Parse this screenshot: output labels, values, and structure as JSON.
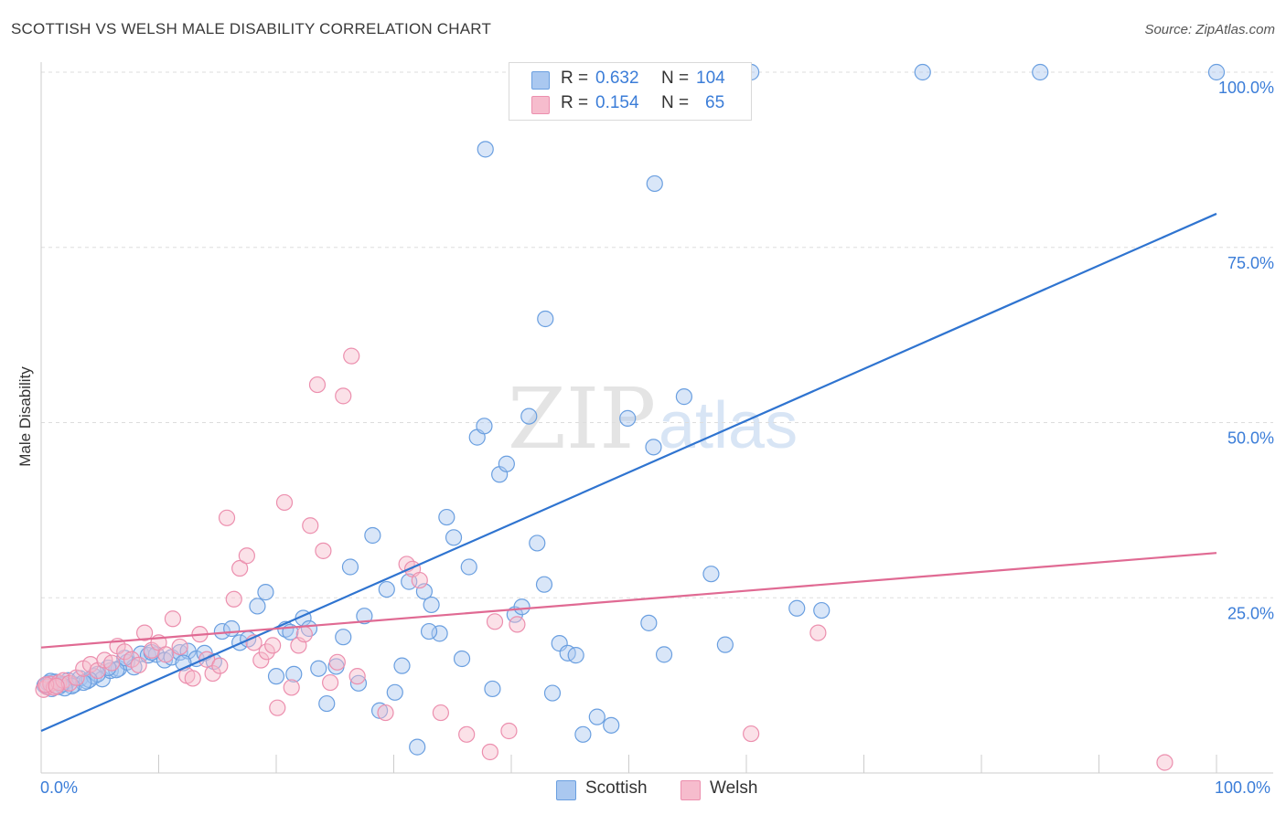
{
  "title": "SCOTTISH VS WELSH MALE DISABILITY CORRELATION CHART",
  "source": "Source: ZipAtlas.com",
  "watermark": "ZIPatlas",
  "legend_stats": [
    {
      "r_label": "R =",
      "r_value": "0.632",
      "n_label": "N =",
      "n_value": "104",
      "color": "#aac8f0"
    },
    {
      "r_label": "R =",
      "r_value": "0.154",
      "n_label": "N =",
      "n_value": "65",
      "color": "#f6bccd"
    }
  ],
  "chart_data": {
    "type": "scatter",
    "title": "SCOTTISH VS WELSH MALE DISABILITY CORRELATION CHART",
    "xlabel": "",
    "ylabel": "Male Disability",
    "xlim": [
      0,
      100
    ],
    "ylim": [
      0,
      100
    ],
    "x_tick_labels": [
      "0.0%",
      "100.0%"
    ],
    "y_tick_labels": [
      "25.0%",
      "50.0%",
      "75.0%",
      "100.0%"
    ],
    "y_ticks": [
      25,
      50,
      75,
      100
    ],
    "grid": true,
    "legend_position": "bottom-center",
    "series": [
      {
        "name": "Scottish",
        "color": "#6a9fe0",
        "fill": "#aac8f0",
        "trend": {
          "x": [
            0,
            100
          ],
          "y": [
            6.0,
            79.8
          ],
          "color": "#2f74d0"
        },
        "points": [
          [
            0.3,
            12.5
          ],
          [
            0.6,
            12.8
          ],
          [
            0.9,
            12.0
          ],
          [
            1.2,
            13.0
          ],
          [
            1.5,
            12.3
          ],
          [
            1.9,
            12.7
          ],
          [
            2.3,
            13.2
          ],
          [
            2.8,
            12.6
          ],
          [
            3.3,
            13.5
          ],
          [
            3.9,
            13.1
          ],
          [
            4.5,
            13.8
          ],
          [
            5.2,
            13.4
          ],
          [
            5.9,
            14.6
          ],
          [
            6.6,
            14.9
          ],
          [
            7.3,
            15.8
          ],
          [
            7.9,
            15.1
          ],
          [
            8.5,
            17.0
          ],
          [
            9.1,
            16.8
          ],
          [
            9.8,
            16.9
          ],
          [
            10.5,
            16.1
          ],
          [
            11.1,
            16.5
          ],
          [
            11.8,
            17.2
          ],
          [
            12.5,
            17.4
          ],
          [
            13.2,
            16.3
          ],
          [
            13.9,
            17.1
          ],
          [
            14.7,
            15.9
          ],
          [
            15.4,
            20.2
          ],
          [
            16.2,
            20.6
          ],
          [
            16.9,
            18.6
          ],
          [
            17.6,
            19.1
          ],
          [
            18.4,
            23.8
          ],
          [
            19.1,
            25.8
          ],
          [
            20.0,
            13.8
          ],
          [
            20.8,
            20.5
          ],
          [
            21.5,
            14.1
          ],
          [
            22.3,
            22.1
          ],
          [
            22.8,
            20.6
          ],
          [
            23.6,
            14.9
          ],
          [
            24.3,
            9.9
          ],
          [
            25.1,
            15.2
          ],
          [
            25.7,
            19.4
          ],
          [
            26.3,
            29.4
          ],
          [
            27.0,
            12.8
          ],
          [
            27.5,
            22.4
          ],
          [
            28.2,
            33.9
          ],
          [
            28.8,
            8.9
          ],
          [
            29.4,
            26.2
          ],
          [
            30.1,
            11.5
          ],
          [
            30.7,
            15.3
          ],
          [
            31.3,
            27.3
          ],
          [
            32.0,
            3.7
          ],
          [
            32.6,
            25.9
          ],
          [
            33.2,
            24.0
          ],
          [
            33.9,
            19.9
          ],
          [
            34.5,
            36.5
          ],
          [
            35.1,
            33.6
          ],
          [
            35.8,
            16.3
          ],
          [
            36.4,
            29.4
          ],
          [
            37.1,
            47.9
          ],
          [
            37.7,
            49.5
          ],
          [
            38.4,
            12.0
          ],
          [
            39.0,
            42.6
          ],
          [
            39.6,
            44.1
          ],
          [
            40.3,
            22.6
          ],
          [
            40.9,
            23.7
          ],
          [
            41.5,
            50.9
          ],
          [
            42.2,
            32.8
          ],
          [
            42.8,
            26.9
          ],
          [
            43.5,
            11.4
          ],
          [
            44.1,
            18.5
          ],
          [
            44.8,
            17.1
          ],
          [
            45.5,
            16.8
          ],
          [
            46.1,
            5.5
          ],
          [
            47.3,
            8.0
          ],
          [
            48.5,
            6.8
          ],
          [
            49.9,
            50.6
          ],
          [
            51.7,
            21.4
          ],
          [
            52.1,
            46.5
          ],
          [
            53.0,
            16.9
          ],
          [
            54.7,
            53.7
          ],
          [
            57.0,
            28.4
          ],
          [
            58.2,
            18.3
          ],
          [
            60.4,
            100.0
          ],
          [
            64.3,
            23.5
          ],
          [
            66.4,
            23.2
          ],
          [
            75.0,
            100.0
          ],
          [
            85.0,
            100.0
          ],
          [
            100.0,
            100.0
          ],
          [
            37.8,
            89.0
          ],
          [
            52.2,
            84.1
          ],
          [
            42.9,
            64.8
          ],
          [
            33.0,
            20.2
          ],
          [
            21.2,
            20.1
          ],
          [
            12.1,
            15.7
          ],
          [
            9.4,
            17.2
          ],
          [
            7.1,
            16.4
          ],
          [
            6.4,
            14.7
          ],
          [
            5.7,
            15.0
          ],
          [
            4.8,
            14.1
          ],
          [
            4.1,
            13.3
          ],
          [
            3.6,
            12.9
          ],
          [
            2.6,
            12.4
          ],
          [
            2.0,
            12.1
          ],
          [
            1.0,
            12.9
          ],
          [
            0.8,
            13.1
          ],
          [
            1.7,
            12.6
          ]
        ]
      },
      {
        "name": "Welsh",
        "color": "#ec8fae",
        "fill": "#f6bccd",
        "trend": {
          "x": [
            0,
            100
          ],
          "y": [
            17.9,
            31.4
          ],
          "color": "#e06a93"
        },
        "points": [
          [
            0.2,
            11.9
          ],
          [
            0.5,
            12.3
          ],
          [
            0.8,
            12.7
          ],
          [
            1.1,
            12.2
          ],
          [
            1.5,
            12.9
          ],
          [
            1.9,
            13.2
          ],
          [
            2.4,
            12.8
          ],
          [
            3.0,
            13.6
          ],
          [
            3.6,
            14.9
          ],
          [
            4.2,
            15.5
          ],
          [
            4.8,
            14.6
          ],
          [
            5.4,
            16.1
          ],
          [
            6.0,
            15.7
          ],
          [
            6.5,
            18.1
          ],
          [
            7.1,
            17.3
          ],
          [
            7.7,
            16.2
          ],
          [
            8.3,
            15.4
          ],
          [
            8.8,
            20.0
          ],
          [
            9.4,
            17.5
          ],
          [
            10.0,
            18.6
          ],
          [
            10.6,
            16.9
          ],
          [
            11.2,
            22.0
          ],
          [
            11.8,
            18.0
          ],
          [
            12.4,
            13.9
          ],
          [
            12.9,
            13.5
          ],
          [
            13.5,
            19.8
          ],
          [
            14.1,
            16.2
          ],
          [
            14.6,
            14.2
          ],
          [
            15.2,
            15.3
          ],
          [
            15.8,
            36.4
          ],
          [
            16.4,
            24.8
          ],
          [
            16.9,
            29.2
          ],
          [
            17.5,
            31.0
          ],
          [
            18.1,
            18.6
          ],
          [
            18.7,
            16.1
          ],
          [
            19.2,
            17.3
          ],
          [
            19.7,
            18.2
          ],
          [
            20.1,
            9.3
          ],
          [
            20.7,
            38.6
          ],
          [
            21.3,
            12.2
          ],
          [
            21.9,
            18.2
          ],
          [
            22.4,
            19.8
          ],
          [
            22.9,
            35.3
          ],
          [
            23.5,
            55.4
          ],
          [
            24.0,
            31.7
          ],
          [
            24.6,
            12.9
          ],
          [
            25.2,
            15.8
          ],
          [
            25.7,
            53.8
          ],
          [
            26.4,
            59.5
          ],
          [
            26.9,
            13.8
          ],
          [
            29.3,
            8.6
          ],
          [
            31.1,
            29.8
          ],
          [
            31.6,
            29.1
          ],
          [
            32.2,
            27.5
          ],
          [
            34.0,
            8.6
          ],
          [
            36.2,
            5.5
          ],
          [
            38.2,
            3.0
          ],
          [
            38.6,
            21.6
          ],
          [
            39.8,
            6.0
          ],
          [
            40.5,
            21.2
          ],
          [
            60.4,
            5.6
          ],
          [
            66.1,
            20.0
          ],
          [
            95.6,
            1.5
          ],
          [
            0.4,
            12.6
          ],
          [
            1.3,
            12.4
          ]
        ]
      }
    ]
  },
  "bottom_legend": [
    {
      "label": "Scottish",
      "color": "#aac8f0"
    },
    {
      "label": "Welsh",
      "color": "#f6bccd"
    }
  ]
}
